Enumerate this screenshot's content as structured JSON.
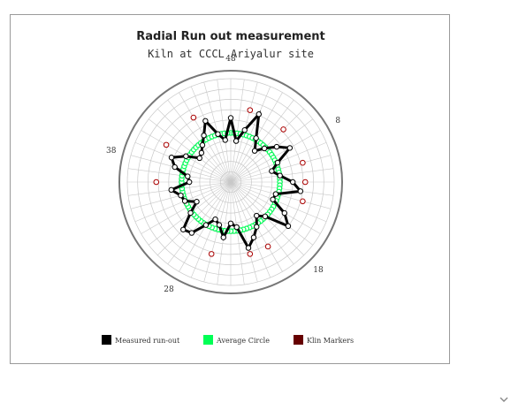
{
  "chart_data": {
    "type": "radar",
    "title": "Radial Run out measurement",
    "subtitle": "Kiln at CCCL Ariyalur site",
    "angle_ticks": [
      "48",
      "8",
      "18",
      "28",
      "38"
    ],
    "tick_positions": [
      0,
      8,
      18,
      28,
      38
    ],
    "num_positions": 48,
    "r_max": 10,
    "series": [
      {
        "name": "Measured run-out",
        "color": "#000000",
        "values": [
          6.2,
          4.0,
          5.2,
          7.1,
          4.9,
          3.8,
          4.6,
          5.6,
          6.6,
          4.9,
          4.1,
          4.8,
          6.0,
          6.8,
          4.5,
          4.4,
          6.0,
          7.0,
          4.7,
          4.1,
          5.0,
          5.8,
          6.6,
          4.4,
          4.0,
          5.4,
          4.3,
          3.9,
          4.8,
          6.2,
          6.5,
          4.9,
          3.8,
          4.8,
          5.0,
          5.8,
          4.0,
          4.2,
          5.6,
          6.2,
          5.0,
          3.8,
          4.0,
          4.5,
          5.2,
          6.4,
          4.8,
          4.1
        ]
      },
      {
        "name": "Average Circle",
        "color": "#00ff55",
        "radius": 4.75
      },
      {
        "name": "Klin Markers",
        "color": "#660000",
        "marker_angles": [
          2,
          6,
          10,
          12,
          14,
          20,
          22,
          26,
          36,
          40,
          44
        ]
      }
    ]
  },
  "legend": {
    "items": [
      {
        "label": "Measured run-out",
        "color": "#000000"
      },
      {
        "label": "Average Circle",
        "color": "#00ff55"
      },
      {
        "label": "Klin Markers",
        "color": "#660000"
      }
    ]
  }
}
